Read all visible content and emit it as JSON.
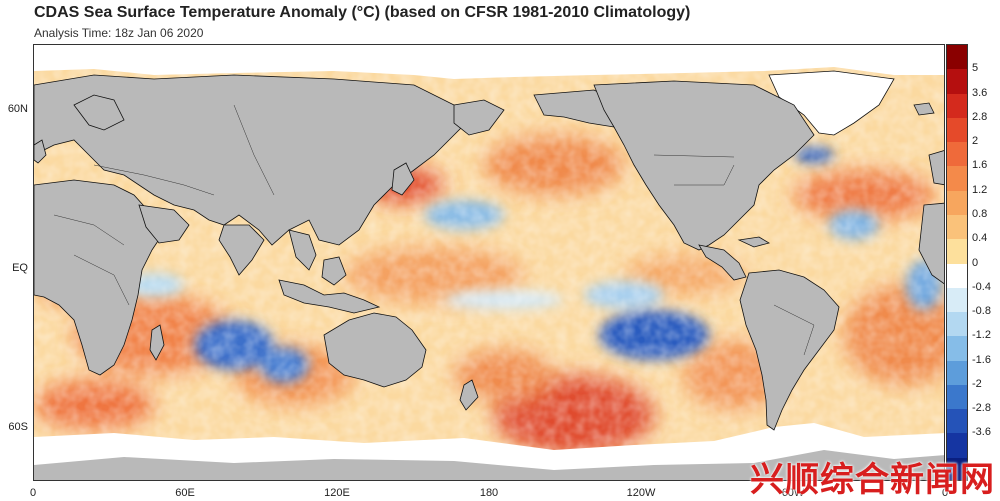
{
  "header": {
    "title": "CDAS Sea Surface Temperature Anomaly (°C) (based on CFSR 1981-2010 Climatology)",
    "subtitle": "Analysis Time: 18z Jan 06 2020"
  },
  "map": {
    "colors": {
      "land": "#b9b9b9",
      "ice": "#ffffff",
      "ocean_base": "#fbe1a8",
      "coast": "#111111"
    },
    "lat_labels": [
      {
        "label": "60N",
        "lat": 60
      },
      {
        "label": "EQ",
        "lat": 0
      },
      {
        "label": "60S",
        "lat": -60
      }
    ],
    "lon_labels": [
      {
        "label": "0",
        "lon": 0
      },
      {
        "label": "60E",
        "lon": 60
      },
      {
        "label": "120E",
        "lon": 120
      },
      {
        "label": "180",
        "lon": 180
      },
      {
        "label": "120W",
        "lon": 240
      },
      {
        "label": "60W",
        "lon": 300
      },
      {
        "label": "0",
        "lon": 360
      }
    ]
  },
  "colorbar": {
    "ticks": [
      "5",
      "3.6",
      "2.8",
      "2",
      "1.6",
      "1.2",
      "0.8",
      "0.4",
      "0",
      "-0.4",
      "-0.8",
      "-1.2",
      "-1.6",
      "-2",
      "-2.8",
      "-3.6"
    ],
    "colors": [
      "#8a0000",
      "#b50f0f",
      "#d42a1d",
      "#e54a2a",
      "#ef6a3a",
      "#f48a4a",
      "#f7a65e",
      "#fac27a",
      "#fde09c",
      "#ffffff",
      "#d8ecf7",
      "#b3d8f1",
      "#86bde8",
      "#5d9ddb",
      "#3b78cc",
      "#2553b8",
      "#1535a2",
      "#0a1f80"
    ]
  },
  "watermark": {
    "text": "兴顺综合新闻网"
  }
}
